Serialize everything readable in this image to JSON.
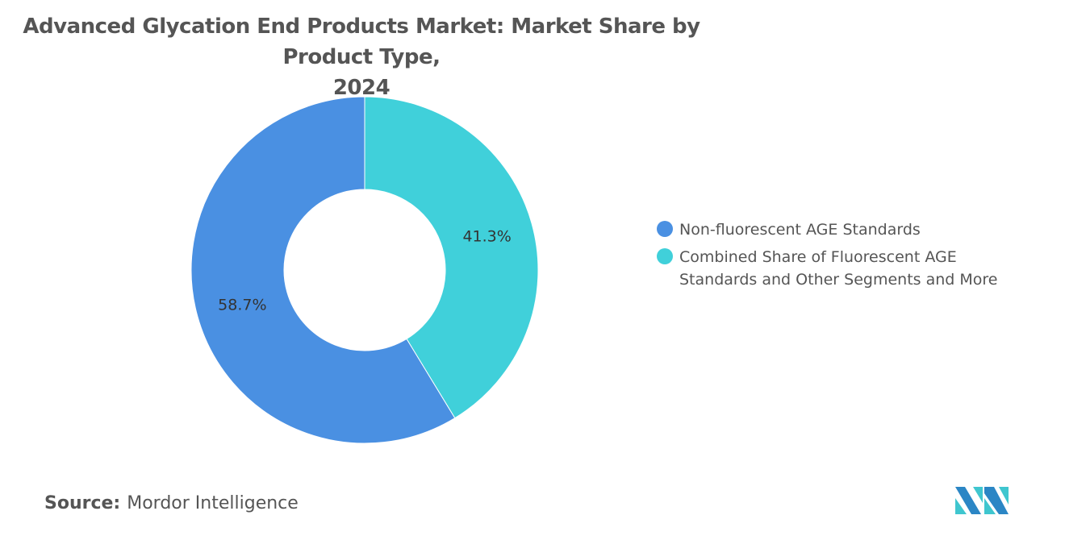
{
  "chart_data": {
    "type": "pie",
    "variant": "donut",
    "title": "Advanced Glycation End Products Market: Market Share by Product Type, 2024",
    "title_lines": [
      "Advanced Glycation End Products Market: Market Share by Product Type,",
      "2024"
    ],
    "slices": [
      {
        "label": "Non-fluorescent AGE Standards",
        "value": 58.7,
        "display": "58.7%",
        "color": "#4a90e2"
      },
      {
        "label": "Combined Share of Fluorescent AGE Standards and Other Segments and More",
        "label_lines": [
          "Combined Share of Fluorescent AGE",
          "Standards and Other Segments and More"
        ],
        "value": 41.3,
        "display": "41.3%",
        "color": "#40d0da"
      }
    ],
    "legend_placement": "right"
  },
  "source": {
    "label": "Source:",
    "value": "Mordor Intelligence"
  }
}
